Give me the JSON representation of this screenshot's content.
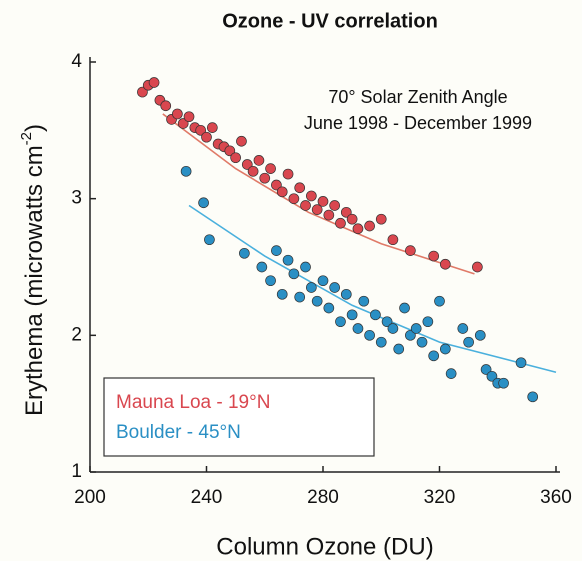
{
  "chart_data": {
    "type": "scatter",
    "title": "Ozone - UV correlation",
    "annotations": [
      "70° Solar Zenith Angle",
      "June 1998 - December 1999"
    ],
    "xlabel": "Column Ozone (DU)",
    "ylabel": "Erythema (microwatts cm",
    "ylabel_sup": "-2",
    "ylabel_end": ")",
    "xlim": [
      200,
      360
    ],
    "xticks": [
      200,
      240,
      280,
      320,
      360
    ],
    "ylim": [
      1,
      4
    ],
    "yticks": [
      1,
      2,
      3,
      4
    ],
    "legend": "lower left",
    "series": [
      {
        "name": "Mauna Loa - 19°N",
        "color": "#d9474f",
        "x": [
          218,
          220,
          222,
          224,
          226,
          228,
          230,
          232,
          234,
          236,
          238,
          240,
          242,
          244,
          246,
          248,
          250,
          252,
          254,
          256,
          258,
          260,
          262,
          264,
          266,
          268,
          270,
          272,
          274,
          276,
          278,
          280,
          282,
          284,
          286,
          288,
          290,
          292,
          296,
          300,
          304,
          310,
          318,
          322,
          333
        ],
        "values": [
          3.78,
          3.83,
          3.85,
          3.72,
          3.68,
          3.58,
          3.62,
          3.55,
          3.6,
          3.52,
          3.5,
          3.45,
          3.52,
          3.4,
          3.38,
          3.35,
          3.3,
          3.42,
          3.25,
          3.2,
          3.28,
          3.15,
          3.22,
          3.1,
          3.05,
          3.18,
          3.0,
          3.08,
          2.95,
          3.02,
          2.92,
          2.98,
          2.88,
          2.95,
          2.82,
          2.9,
          2.85,
          2.78,
          2.8,
          2.85,
          2.7,
          2.62,
          2.58,
          2.52,
          2.5
        ],
        "fit": {
          "color": "#e07a68",
          "x": [
            225,
            250,
            275,
            300,
            332
          ],
          "values": [
            3.62,
            3.22,
            2.9,
            2.67,
            2.45
          ]
        }
      },
      {
        "name": "Boulder - 45°N",
        "color": "#2a8fc4",
        "x": [
          233,
          239,
          241,
          253,
          259,
          262,
          264,
          266,
          268,
          270,
          272,
          274,
          276,
          278,
          280,
          282,
          284,
          286,
          288,
          290,
          292,
          294,
          296,
          298,
          300,
          302,
          304,
          306,
          308,
          310,
          312,
          314,
          316,
          318,
          320,
          322,
          324,
          328,
          330,
          334,
          336,
          338,
          340,
          342,
          348,
          352
        ],
        "values": [
          3.2,
          2.97,
          2.7,
          2.6,
          2.5,
          2.4,
          2.62,
          2.3,
          2.55,
          2.45,
          2.28,
          2.5,
          2.35,
          2.25,
          2.4,
          2.2,
          2.35,
          2.1,
          2.3,
          2.15,
          2.05,
          2.25,
          2.0,
          2.15,
          1.95,
          2.1,
          2.05,
          1.9,
          2.2,
          2.0,
          2.05,
          1.95,
          2.1,
          1.85,
          2.25,
          1.9,
          1.72,
          2.05,
          1.95,
          2.0,
          1.75,
          1.7,
          1.65,
          1.65,
          1.8,
          1.55
        ],
        "fit": {
          "color": "#4ab0dd",
          "x": [
            234,
            260,
            290,
            320,
            360
          ],
          "values": [
            2.95,
            2.58,
            2.22,
            1.95,
            1.73
          ]
        }
      }
    ]
  }
}
